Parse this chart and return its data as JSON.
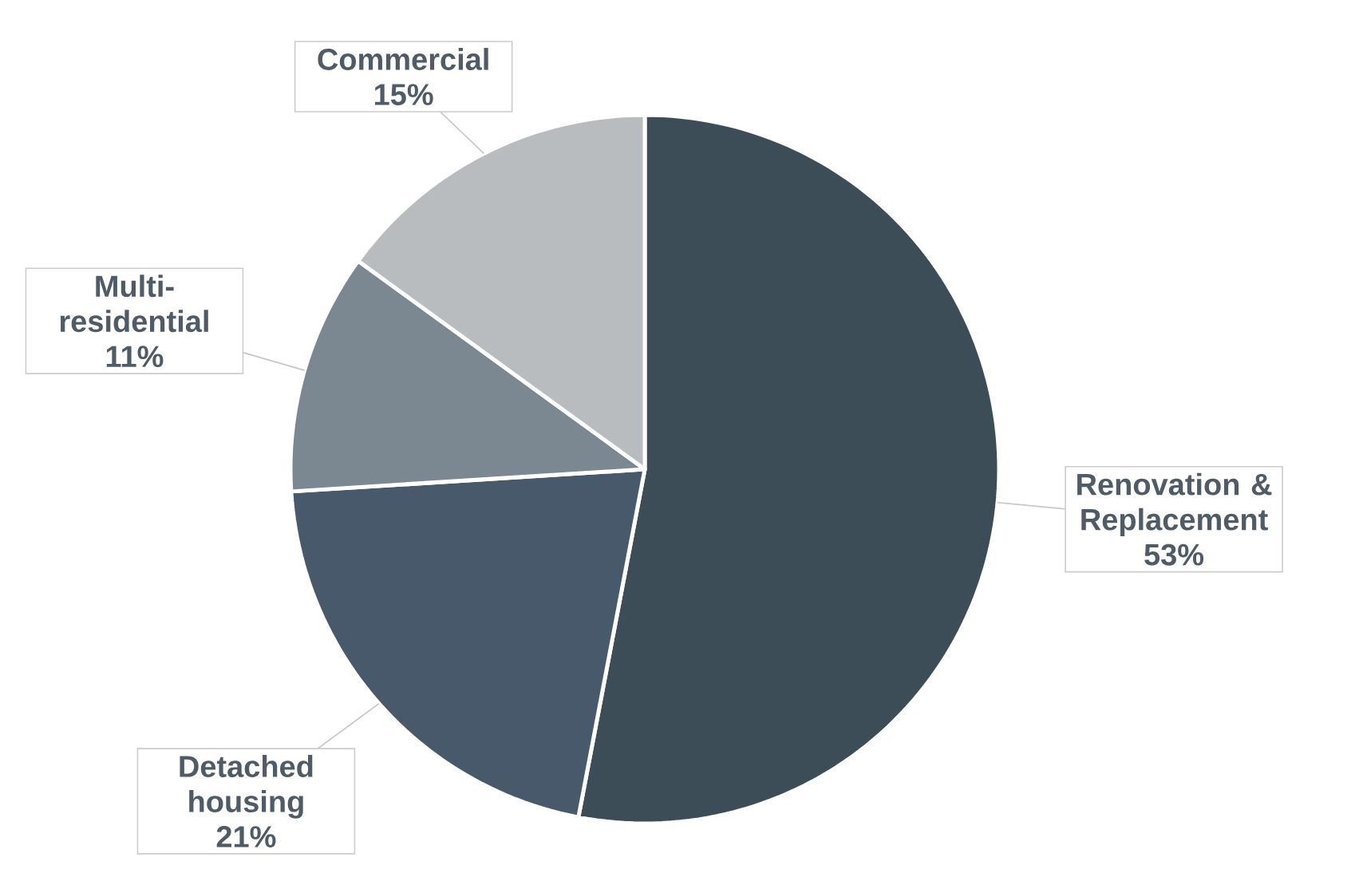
{
  "chart_data": {
    "type": "pie",
    "categories": [
      "Renovation & Replacement",
      "Detached housing",
      "Multi-residential",
      "Commercial"
    ],
    "values": [
      53,
      21,
      11,
      15
    ],
    "colors": [
      "#3d4d57",
      "#47596a",
      "#7b8791",
      "#b8bcbf"
    ],
    "value_labels": [
      "53%",
      "21%",
      "11%",
      "15%"
    ]
  }
}
